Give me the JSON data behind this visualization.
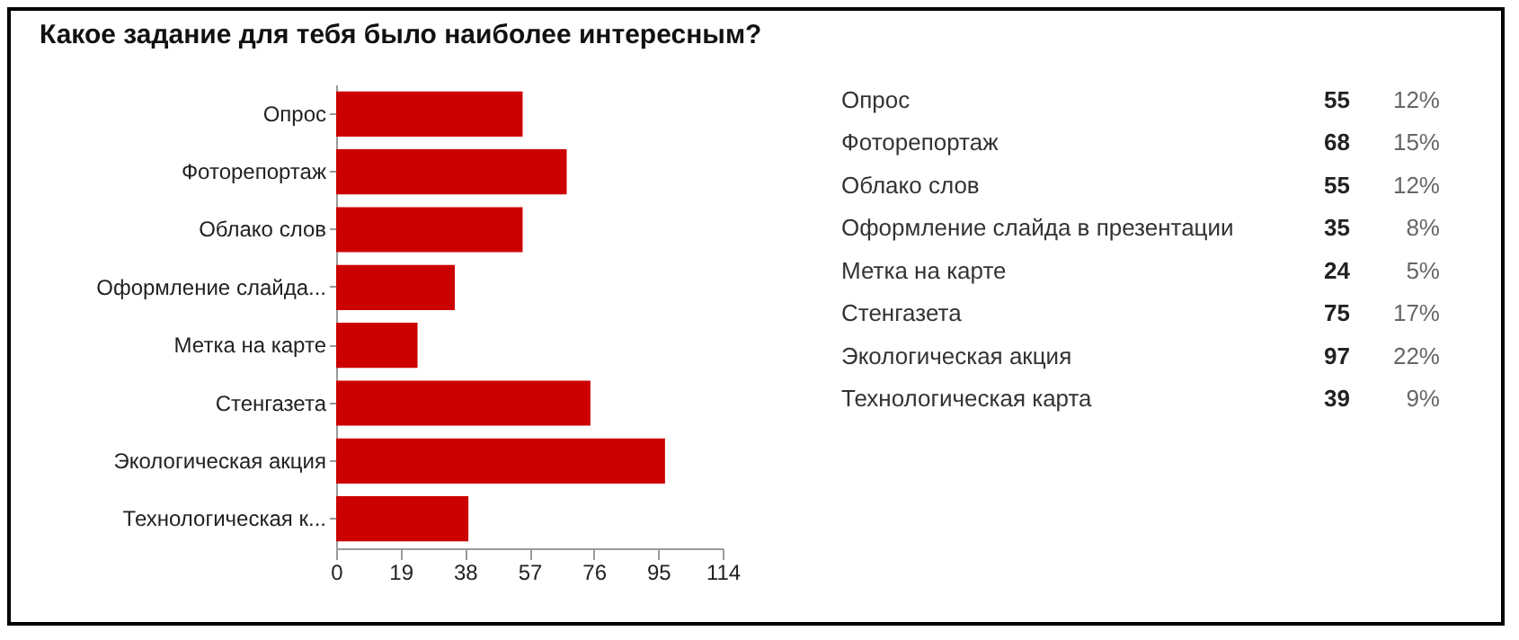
{
  "chart_data": [
    {
      "type": "bar",
      "orientation": "horizontal",
      "title": "Какое задание для тебя было наиболее интересным?",
      "categories": [
        "Опрос",
        "Фоторепортаж",
        "Облако слов",
        "Оформление слайда...",
        "Метка на карте",
        "Стенгазета",
        "Экологическая акция",
        "Технологическая к..."
      ],
      "values": [
        55,
        68,
        55,
        35,
        24,
        75,
        97,
        39
      ],
      "color": "#cc0000",
      "xlim": [
        0,
        114
      ],
      "xticks": [
        0,
        19,
        38,
        57,
        76,
        95,
        114
      ]
    },
    {
      "type": "other",
      "categories": [
        "Опрос",
        "Фоторепортаж",
        "Облако слов",
        "Оформление слайда в презентации",
        "Метка на карте",
        "Стенгазета",
        "Экологическая акция",
        "Технологическая карта"
      ],
      "values": [
        55,
        68,
        55,
        35,
        24,
        75,
        97,
        39
      ],
      "data_labels": true,
      "annotations": [
        "12%",
        "15%",
        "12%",
        "8%",
        "5%",
        "17%",
        "22%",
        "9%"
      ]
    }
  ]
}
